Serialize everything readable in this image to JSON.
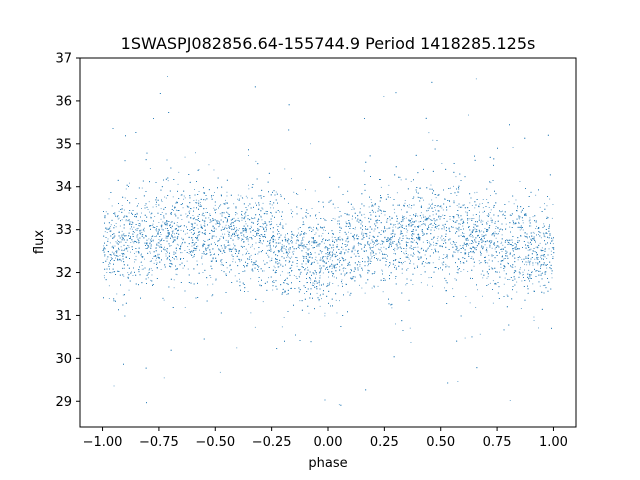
{
  "chart_data": {
    "type": "scatter",
    "title": "1SWASPJ082856.64-155744.9 Period 1418285.125s",
    "xlabel": "phase",
    "ylabel": "flux",
    "xlim": [
      -1.1,
      1.1
    ],
    "ylim": [
      28.4,
      37.0
    ],
    "xticks": [
      -1.0,
      -0.75,
      -0.5,
      -0.25,
      0.0,
      0.25,
      0.5,
      0.75,
      1.0
    ],
    "xtick_labels": [
      "−1.00",
      "−0.75",
      "−0.50",
      "−0.25",
      "0.00",
      "0.25",
      "0.50",
      "0.75",
      "1.00"
    ],
    "yticks": [
      29,
      30,
      31,
      32,
      33,
      34,
      35,
      36,
      37
    ],
    "ytick_labels": [
      "29",
      "30",
      "31",
      "32",
      "33",
      "34",
      "35",
      "36",
      "37"
    ],
    "grid": false,
    "marker_color": "#1f77b4",
    "series": [
      {
        "x_range": [
          -1.0,
          1.0
        ],
        "profile_phase": [
          -1.0,
          -0.9,
          -0.8,
          -0.7,
          -0.6,
          -0.5,
          -0.4,
          -0.3,
          -0.2,
          -0.1,
          0.0,
          0.1,
          0.2,
          0.3,
          0.4,
          0.5,
          0.6,
          0.7,
          0.8,
          0.9,
          1.0
        ],
        "profile_center": [
          32.5,
          32.7,
          32.8,
          32.9,
          33.0,
          32.9,
          32.8,
          32.8,
          32.6,
          32.4,
          32.4,
          32.6,
          32.8,
          32.8,
          33.0,
          33.0,
          32.9,
          32.8,
          32.6,
          32.5,
          32.5
        ],
        "typical_spread": 0.55,
        "outlier_min": 28.8,
        "outlier_max": 36.6
      }
    ]
  }
}
